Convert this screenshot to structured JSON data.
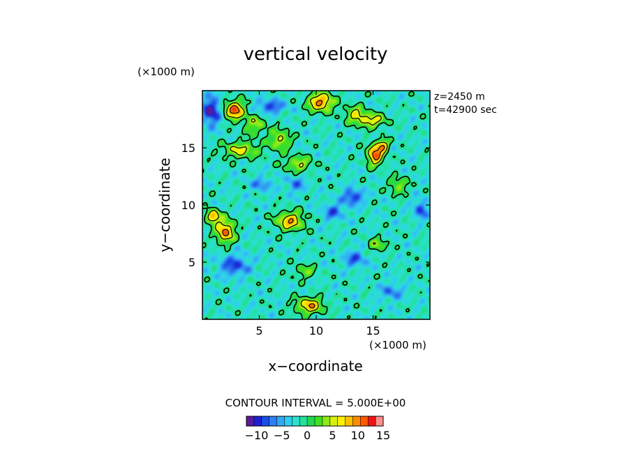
{
  "chart_data": {
    "type": "heatmap",
    "title": "vertical velocity",
    "xlabel": "x−coordinate",
    "ylabel": "y−coordinate",
    "x_unit": "(×1000 m)",
    "y_unit": "(×1000 m)",
    "xlim": [
      0,
      20
    ],
    "ylim": [
      0,
      20
    ],
    "x_ticks": [
      "5",
      "10",
      "15"
    ],
    "y_ticks": [
      "5",
      "10",
      "15"
    ],
    "x_tick_values": [
      5,
      10,
      15
    ],
    "y_tick_values": [
      5,
      10,
      15
    ],
    "annotations": [
      "z=2450 m",
      "t=42900 sec"
    ],
    "contour_interval_text": "CONTOUR INTERVAL = 5.000E+00",
    "colorbar": {
      "min": -12,
      "max": 15,
      "tick_labels": [
        "−10",
        "−5",
        "0",
        "5",
        "10",
        "15"
      ],
      "tick_values": [
        -10,
        -5,
        0,
        5,
        10,
        15
      ],
      "colors": [
        "#5a1a9c",
        "#2020d0",
        "#1a4ee8",
        "#2e7ff0",
        "#33a8f2",
        "#30ccf0",
        "#2ae0d0",
        "#23e09a",
        "#23d850",
        "#3fe020",
        "#8ee81a",
        "#d6f012",
        "#fff000",
        "#ffc000",
        "#ff8c00",
        "#ff5a00",
        "#ee1414",
        "#ff9090"
      ]
    },
    "contour_levels": [
      0,
      5,
      10
    ],
    "updrafts": [
      {
        "x": 2.8,
        "y": 18.3,
        "amp": 14,
        "rx": 0.9,
        "ry": 0.8
      },
      {
        "x": 10.4,
        "y": 19.0,
        "amp": 13,
        "rx": 1.1,
        "ry": 0.8
      },
      {
        "x": 15.2,
        "y": 14.4,
        "amp": 14,
        "rx": 0.7,
        "ry": 0.9
      },
      {
        "x": 15.9,
        "y": 15.2,
        "amp": 10,
        "rx": 0.5,
        "ry": 0.5
      },
      {
        "x": 14.8,
        "y": 17.4,
        "amp": 9,
        "rx": 1.3,
        "ry": 0.6
      },
      {
        "x": 2.0,
        "y": 7.7,
        "amp": 13,
        "rx": 0.8,
        "ry": 1.0
      },
      {
        "x": 0.9,
        "y": 9.0,
        "amp": 12,
        "rx": 0.6,
        "ry": 0.6
      },
      {
        "x": 7.7,
        "y": 8.6,
        "amp": 11,
        "rx": 1.2,
        "ry": 0.8
      },
      {
        "x": 9.4,
        "y": 1.2,
        "amp": 11,
        "rx": 1.2,
        "ry": 0.7
      },
      {
        "x": 6.8,
        "y": 15.7,
        "amp": 8,
        "rx": 0.9,
        "ry": 0.9
      },
      {
        "x": 3.4,
        "y": 14.8,
        "amp": 8,
        "rx": 1.6,
        "ry": 0.7
      },
      {
        "x": 8.4,
        "y": 13.6,
        "amp": 7,
        "rx": 1.2,
        "ry": 0.7
      },
      {
        "x": 13.4,
        "y": 18.0,
        "amp": 7,
        "rx": 0.9,
        "ry": 0.7
      },
      {
        "x": 17.2,
        "y": 11.7,
        "amp": 6,
        "rx": 0.8,
        "ry": 0.8
      },
      {
        "x": 15.4,
        "y": 6.5,
        "amp": 6,
        "rx": 0.8,
        "ry": 0.6
      },
      {
        "x": 9.0,
        "y": 4.2,
        "amp": 5,
        "rx": 1.0,
        "ry": 0.6
      },
      {
        "x": 4.6,
        "y": 17.0,
        "amp": 6,
        "rx": 1.0,
        "ry": 0.9
      }
    ],
    "downdrafts": [
      {
        "x": 0.8,
        "y": 18.2,
        "amp": -10,
        "rx": 0.8,
        "ry": 1.2
      },
      {
        "x": 6.0,
        "y": 18.6,
        "amp": -7,
        "rx": 1.2,
        "ry": 0.6
      },
      {
        "x": 13.2,
        "y": 10.7,
        "amp": -8,
        "rx": 0.9,
        "ry": 0.7
      },
      {
        "x": 11.5,
        "y": 9.4,
        "amp": -6,
        "rx": 0.9,
        "ry": 0.7
      },
      {
        "x": 2.8,
        "y": 4.7,
        "amp": -7,
        "rx": 1.3,
        "ry": 0.9
      },
      {
        "x": 13.4,
        "y": 5.3,
        "amp": -6,
        "rx": 1.0,
        "ry": 0.7
      },
      {
        "x": 5.2,
        "y": 11.8,
        "amp": -5,
        "rx": 0.9,
        "ry": 0.6
      },
      {
        "x": 19.2,
        "y": 9.6,
        "amp": -7,
        "rx": 0.6,
        "ry": 0.8
      },
      {
        "x": 16.6,
        "y": 2.4,
        "amp": -5,
        "rx": 1.0,
        "ry": 0.7
      },
      {
        "x": 8.2,
        "y": 11.8,
        "amp": -5,
        "rx": 0.8,
        "ry": 0.7
      }
    ],
    "background_level": -2.2
  }
}
